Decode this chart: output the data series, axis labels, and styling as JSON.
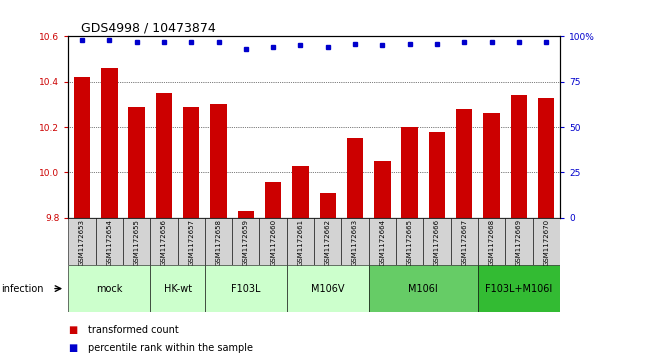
{
  "title": "GDS4998 / 10473874",
  "samples": [
    "GSM1172653",
    "GSM1172654",
    "GSM1172655",
    "GSM1172656",
    "GSM1172657",
    "GSM1172658",
    "GSM1172659",
    "GSM1172660",
    "GSM1172661",
    "GSM1172662",
    "GSM1172663",
    "GSM1172664",
    "GSM1172665",
    "GSM1172666",
    "GSM1172667",
    "GSM1172668",
    "GSM1172669",
    "GSM1172670"
  ],
  "bar_values": [
    10.42,
    10.46,
    10.29,
    10.35,
    10.29,
    10.3,
    9.83,
    9.96,
    10.03,
    9.91,
    10.15,
    10.05,
    10.2,
    10.18,
    10.28,
    10.26,
    10.34,
    10.33
  ],
  "percentile_values": [
    98,
    98,
    97,
    97,
    97,
    97,
    93,
    94,
    95,
    94,
    96,
    95,
    96,
    96,
    97,
    97,
    97,
    97
  ],
  "ylim_left": [
    9.8,
    10.6
  ],
  "ylim_right": [
    0,
    100
  ],
  "yticks_left": [
    9.8,
    10.0,
    10.2,
    10.4,
    10.6
  ],
  "yticks_right": [
    0,
    25,
    50,
    75,
    100
  ],
  "ytick_labels_right": [
    "0",
    "25",
    "50",
    "75",
    "100%"
  ],
  "bar_color": "#cc0000",
  "dot_color": "#0000cc",
  "bar_width": 0.6,
  "groups_data": [
    {
      "label": "mock",
      "start": 0,
      "end": 2,
      "color": "#ccffcc"
    },
    {
      "label": "HK-wt",
      "start": 3,
      "end": 4,
      "color": "#ccffcc"
    },
    {
      "label": "F103L",
      "start": 5,
      "end": 7,
      "color": "#ccffcc"
    },
    {
      "label": "M106V",
      "start": 8,
      "end": 10,
      "color": "#ccffcc"
    },
    {
      "label": "M106I",
      "start": 11,
      "end": 14,
      "color": "#66cc66"
    },
    {
      "label": "F103L+M106I",
      "start": 15,
      "end": 17,
      "color": "#33bb33"
    }
  ],
  "infection_label": "infection",
  "legend_bar_label": "transformed count",
  "legend_dot_label": "percentile rank within the sample",
  "grid_color": "#888888",
  "label_color_left": "#cc0000",
  "label_color_right": "#0000cc",
  "cell_color": "#d3d3d3",
  "title_fontsize": 9,
  "tick_fontsize": 6.5,
  "group_fontsize": 7,
  "legend_fontsize": 7
}
